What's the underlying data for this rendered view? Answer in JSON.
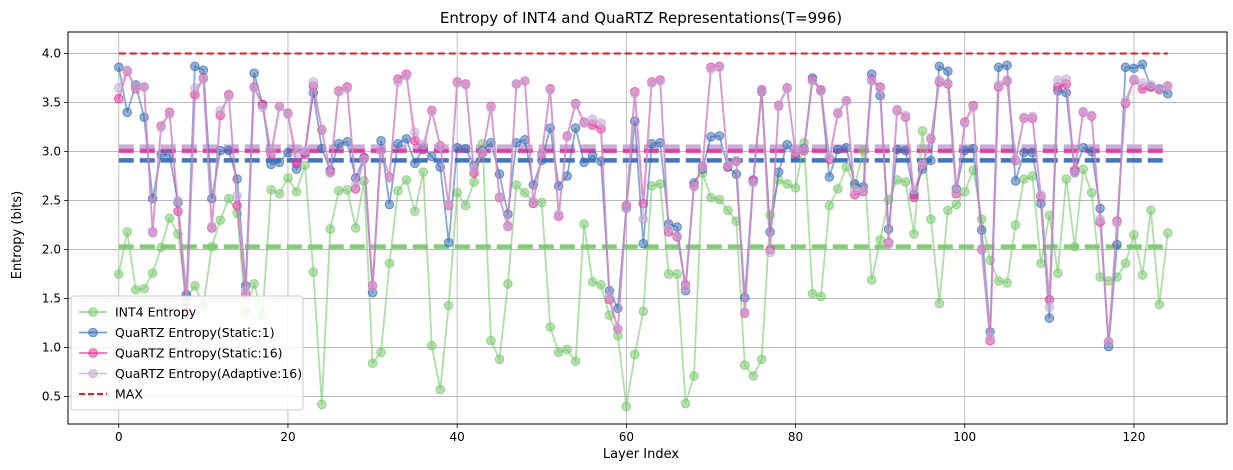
{
  "chart_data": {
    "type": "line",
    "title": "Entropy of INT4 and QuaRTZ Representations(T=996)",
    "xlabel": "Layer Index",
    "ylabel": "Entropy (bits)",
    "xlim": [
      -6,
      131
    ],
    "ylim": [
      0.22,
      4.22
    ],
    "xticks": [
      0,
      20,
      40,
      60,
      80,
      100,
      120
    ],
    "yticks": [
      0.5,
      1.0,
      1.5,
      2.0,
      2.5,
      3.0,
      3.5,
      4.0
    ],
    "xtick_labels": [
      "0",
      "20",
      "40",
      "60",
      "80",
      "100",
      "120"
    ],
    "ytick_labels": [
      "0.5",
      "1.0",
      "1.5",
      "2.0",
      "2.5",
      "3.0",
      "3.5",
      "4.0"
    ],
    "grid": true,
    "legend_position": "lower-left",
    "series": [
      {
        "name": "INT4 Entropy",
        "color": "#7ac96e",
        "mean": 2.03,
        "values": [
          1.75,
          2.18,
          1.59,
          1.6,
          1.76,
          2.02,
          2.32,
          2.16,
          1.51,
          1.63,
          1.43,
          2.03,
          2.3,
          2.52,
          2.37,
          1.37,
          1.65,
          1.33,
          2.61,
          2.57,
          2.73,
          2.59,
          2.86,
          1.77,
          0.42,
          2.21,
          2.6,
          2.61,
          2.22,
          2.7,
          0.84,
          0.95,
          1.86,
          2.6,
          2.71,
          2.39,
          2.79,
          1.02,
          0.57,
          1.43,
          2.58,
          2.45,
          2.69,
          3.08,
          1.07,
          0.88,
          1.65,
          2.66,
          2.58,
          2.49,
          2.48,
          1.21,
          0.95,
          0.98,
          0.86,
          2.26,
          1.67,
          1.64,
          1.33,
          1.12,
          0.4,
          0.93,
          1.37,
          2.65,
          2.67,
          1.75,
          1.75,
          0.43,
          0.71,
          2.78,
          2.53,
          2.51,
          2.4,
          2.29,
          0.82,
          0.71,
          0.88,
          2.35,
          2.71,
          2.67,
          2.63,
          3.09,
          1.55,
          1.52,
          2.45,
          2.62,
          2.84,
          2.65,
          3.01,
          1.69,
          2.1,
          2.51,
          2.71,
          2.69,
          2.16,
          3.21,
          2.31,
          1.45,
          2.4,
          2.46,
          2.59,
          2.81,
          2.31,
          1.89,
          1.68,
          1.66,
          2.25,
          2.72,
          2.75,
          1.86,
          2.35,
          1.76,
          2.72,
          2.03,
          2.82,
          2.58,
          1.72,
          1.68,
          1.72,
          1.86,
          2.15,
          1.74,
          2.4,
          1.44,
          2.17
        ]
      },
      {
        "name": "QuaRTZ Entropy(Static:1)",
        "color": "#3b6fb6",
        "mean": 2.91,
        "values": [
          3.86,
          3.4,
          3.68,
          3.35,
          2.52,
          2.97,
          2.97,
          2.48,
          1.54,
          3.87,
          3.83,
          2.52,
          3.01,
          3.01,
          2.72,
          1.63,
          3.8,
          3.48,
          2.87,
          2.89,
          2.99,
          2.82,
          2.99,
          3.6,
          3.03,
          2.81,
          3.08,
          3.1,
          2.73,
          2.94,
          1.56,
          3.11,
          2.46,
          3.08,
          3.13,
          2.88,
          3.04,
          2.95,
          2.84,
          2.07,
          3.04,
          3.03,
          2.86,
          3.01,
          3.09,
          2.77,
          2.36,
          3.09,
          3.12,
          2.66,
          2.91,
          3.24,
          2.65,
          2.75,
          3.24,
          2.89,
          2.96,
          2.9,
          1.58,
          1.4,
          2.42,
          3.31,
          2.06,
          3.08,
          3.09,
          2.26,
          2.23,
          1.58,
          2.68,
          2.82,
          3.15,
          3.16,
          2.84,
          2.77,
          1.51,
          2.7,
          3.61,
          2.18,
          2.79,
          3.07,
          2.94,
          3.03,
          3.75,
          3.62,
          2.74,
          3.02,
          3.04,
          2.67,
          2.64,
          3.79,
          3.57,
          2.21,
          3.02,
          3.01,
          2.56,
          2.82,
          2.91,
          3.87,
          3.82,
          2.62,
          3.01,
          3.03,
          2.2,
          1.16,
          3.86,
          3.88,
          2.7,
          2.99,
          2.99,
          2.47,
          1.3,
          3.62,
          3.6,
          2.79,
          3.04,
          3.0,
          2.42,
          1.01,
          2.05,
          3.86,
          3.85,
          3.89,
          3.66,
          3.64,
          3.59
        ]
      },
      {
        "name": "QuaRTZ Entropy(Static:16)",
        "color": "#e8339a",
        "mean": 3.01,
        "values": [
          3.54,
          3.82,
          3.64,
          3.66,
          2.18,
          3.26,
          3.4,
          2.39,
          1.36,
          3.58,
          3.75,
          2.22,
          3.37,
          3.58,
          2.45,
          1.54,
          3.66,
          3.48,
          2.97,
          3.46,
          3.39,
          2.88,
          2.97,
          3.67,
          3.22,
          2.79,
          3.62,
          3.66,
          2.62,
          2.93,
          1.63,
          3.01,
          2.74,
          3.74,
          3.79,
          3.11,
          3.02,
          3.42,
          3.06,
          2.45,
          3.71,
          3.69,
          2.78,
          2.98,
          3.46,
          2.53,
          2.24,
          3.69,
          3.72,
          2.47,
          2.97,
          3.64,
          2.34,
          3.16,
          3.49,
          3.3,
          3.27,
          3.23,
          1.49,
          1.19,
          2.45,
          3.61,
          2.47,
          3.71,
          3.73,
          2.18,
          2.13,
          1.64,
          2.65,
          2.85,
          3.86,
          3.87,
          2.85,
          2.9,
          1.35,
          2.71,
          3.63,
          2.0,
          3.47,
          3.65,
          2.98,
          3.01,
          3.73,
          3.63,
          2.92,
          3.39,
          3.52,
          2.56,
          2.59,
          3.73,
          3.66,
          2.07,
          3.42,
          3.35,
          2.53,
          2.86,
          3.13,
          3.71,
          3.69,
          2.57,
          3.3,
          3.47,
          2.0,
          1.07,
          3.66,
          3.72,
          2.91,
          3.34,
          3.34,
          2.54,
          1.49,
          3.66,
          3.69,
          2.81,
          3.4,
          3.36,
          2.28,
          1.06,
          2.29,
          3.49,
          3.73,
          3.64,
          3.66,
          3.63,
          3.67
        ]
      },
      {
        "name": "QuaRTZ Entropy(Adaptive:16)",
        "color": "#c5aad6",
        "mean": 3.05,
        "values": [
          3.65,
          3.83,
          3.65,
          3.66,
          2.17,
          3.25,
          3.38,
          2.5,
          1.48,
          3.65,
          3.74,
          2.24,
          3.42,
          3.56,
          2.55,
          1.58,
          3.65,
          3.45,
          3.01,
          3.46,
          3.38,
          2.98,
          3.01,
          3.71,
          3.23,
          2.78,
          3.61,
          3.64,
          2.66,
          2.92,
          1.62,
          3.01,
          2.73,
          3.71,
          3.77,
          3.2,
          3.07,
          3.41,
          3.05,
          2.46,
          3.7,
          3.68,
          2.83,
          2.99,
          3.45,
          2.54,
          2.23,
          3.69,
          3.72,
          2.49,
          2.98,
          3.63,
          2.36,
          3.15,
          3.48,
          3.29,
          3.33,
          3.29,
          1.52,
          1.19,
          2.42,
          3.59,
          2.31,
          3.7,
          3.72,
          2.21,
          2.14,
          1.61,
          2.64,
          2.84,
          3.84,
          3.86,
          2.86,
          2.91,
          1.36,
          2.68,
          3.62,
          1.97,
          3.46,
          3.64,
          3.0,
          3.02,
          3.72,
          3.62,
          2.95,
          3.4,
          3.52,
          2.61,
          2.6,
          3.72,
          3.64,
          2.05,
          3.43,
          3.37,
          2.61,
          2.87,
          3.14,
          3.73,
          3.7,
          2.59,
          3.29,
          3.45,
          2.01,
          1.1,
          3.68,
          3.73,
          2.92,
          3.35,
          3.36,
          2.56,
          1.41,
          3.73,
          3.74,
          2.78,
          3.41,
          3.37,
          2.31,
          1.06,
          2.27,
          3.52,
          3.74,
          3.7,
          3.68,
          3.63,
          3.67
        ]
      },
      {
        "name": "MAX",
        "color": "#e41a1c",
        "value": 4.0
      }
    ]
  }
}
